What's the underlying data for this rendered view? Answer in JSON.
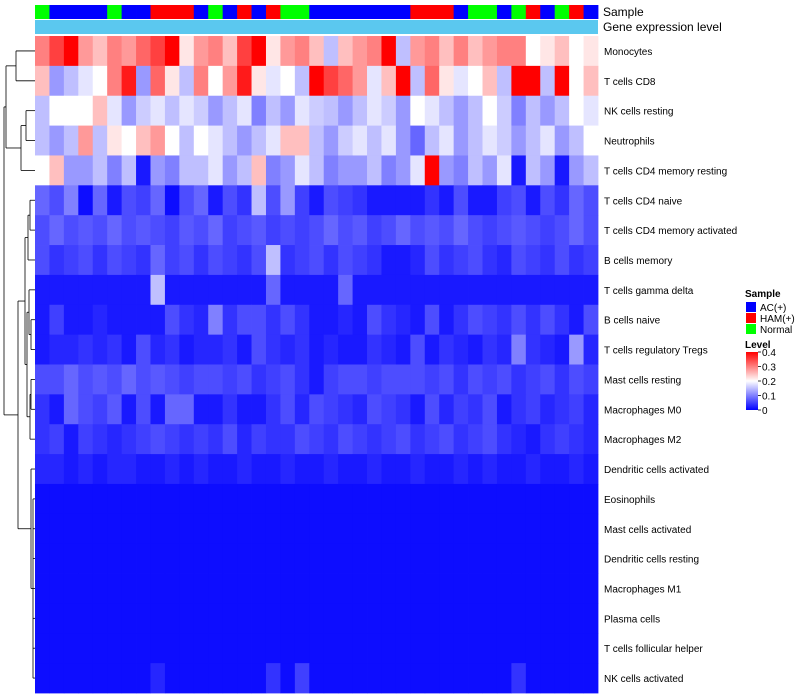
{
  "chart_data": {
    "type": "heatmap",
    "annotation_labels": [
      "Sample",
      "Gene expression level"
    ],
    "sample_groups": [
      "AC(+)",
      "HAM(+)",
      "Normal"
    ],
    "group_colors": {
      "AC(+)": "#0000ff",
      "HAM(+)": "#ff0000",
      "Normal": "#00ff00"
    },
    "samples": [
      "N",
      "A",
      "A",
      "A",
      "A",
      "N",
      "A",
      "A",
      "H",
      "H",
      "H",
      "A",
      "N",
      "A",
      "H",
      "A",
      "H",
      "N",
      "N",
      "A",
      "A",
      "A",
      "A",
      "A",
      "A",
      "A",
      "H",
      "H",
      "H",
      "A",
      "N",
      "N",
      "A",
      "N",
      "H",
      "A",
      "N",
      "H",
      "A"
    ],
    "expression_bar_color": "#5bc8ef",
    "rows": [
      "Monocytes",
      "T cells CD8",
      "NK cells resting",
      "Neutrophils",
      "T cells CD4 memory resting",
      "T cells CD4 naive",
      "T cells CD4 memory activated",
      "B cells memory",
      "T cells gamma delta",
      "B cells naive",
      "T cells regulatory  Tregs",
      "Mast cells resting",
      "Macrophages M0",
      "Macrophages M2",
      "Dendritic cells activated",
      "Eosinophils",
      "Mast cells activated",
      "Dendritic cells resting",
      "Macrophages M1",
      "Plasma cells",
      "T cells follicular helper",
      "NK cells activated"
    ],
    "values": [
      [
        0.3,
        0.35,
        0.4,
        0.28,
        0.25,
        0.3,
        0.28,
        0.32,
        0.35,
        0.4,
        0.22,
        0.28,
        0.3,
        0.25,
        0.35,
        0.4,
        0.22,
        0.28,
        0.3,
        0.25,
        0.15,
        0.25,
        0.28,
        0.3,
        0.4,
        0.15,
        0.28,
        0.3,
        0.25,
        0.3,
        0.25,
        0.28,
        0.3,
        0.3,
        0.2,
        0.22,
        0.25,
        0.2,
        0.22
      ],
      [
        0.25,
        0.12,
        0.15,
        0.18,
        0.2,
        0.3,
        0.38,
        0.12,
        0.32,
        0.22,
        0.15,
        0.3,
        0.2,
        0.28,
        0.38,
        0.22,
        0.18,
        0.2,
        0.15,
        0.4,
        0.35,
        0.32,
        0.28,
        0.18,
        0.25,
        0.4,
        0.15,
        0.32,
        0.22,
        0.18,
        0.2,
        0.25,
        0.15,
        0.4,
        0.4,
        0.15,
        0.4,
        0.2,
        0.25
      ],
      [
        0.15,
        0.2,
        0.2,
        0.2,
        0.25,
        0.18,
        0.12,
        0.16,
        0.18,
        0.15,
        0.18,
        0.16,
        0.12,
        0.15,
        0.18,
        0.1,
        0.15,
        0.12,
        0.18,
        0.16,
        0.15,
        0.12,
        0.15,
        0.18,
        0.16,
        0.12,
        0.2,
        0.18,
        0.15,
        0.12,
        0.15,
        0.2,
        0.16,
        0.1,
        0.15,
        0.12,
        0.15,
        0.2,
        0.18
      ],
      [
        0.15,
        0.12,
        0.15,
        0.28,
        0.15,
        0.22,
        0.2,
        0.25,
        0.28,
        0.2,
        0.15,
        0.2,
        0.18,
        0.15,
        0.12,
        0.15,
        0.18,
        0.25,
        0.25,
        0.15,
        0.12,
        0.16,
        0.18,
        0.15,
        0.18,
        0.12,
        0.08,
        0.15,
        0.18,
        0.12,
        0.15,
        0.18,
        0.16,
        0.12,
        0.15,
        0.18,
        0.12,
        0.15,
        0.2
      ],
      [
        0.2,
        0.25,
        0.12,
        0.12,
        0.15,
        0.1,
        0.15,
        0.02,
        0.12,
        0.1,
        0.15,
        0.15,
        0.18,
        0.12,
        0.15,
        0.25,
        0.1,
        0.12,
        0.18,
        0.15,
        0.1,
        0.12,
        0.12,
        0.15,
        0.1,
        0.12,
        0.18,
        0.4,
        0.12,
        0.1,
        0.15,
        0.12,
        0.18,
        0.02,
        0.15,
        0.12,
        0.02,
        0.12,
        0.15
      ],
      [
        0.08,
        0.06,
        0.1,
        0.01,
        0.08,
        0.02,
        0.06,
        0.05,
        0.08,
        0.01,
        0.06,
        0.08,
        0.02,
        0.06,
        0.04,
        0.15,
        0.06,
        0.12,
        0.05,
        0.02,
        0.06,
        0.05,
        0.04,
        0.02,
        0.02,
        0.02,
        0.02,
        0.04,
        0.02,
        0.06,
        0.02,
        0.02,
        0.05,
        0.06,
        0.02,
        0.06,
        0.04,
        0.08,
        0.06
      ],
      [
        0.06,
        0.08,
        0.06,
        0.07,
        0.06,
        0.08,
        0.06,
        0.07,
        0.06,
        0.05,
        0.07,
        0.06,
        0.08,
        0.05,
        0.06,
        0.07,
        0.05,
        0.06,
        0.05,
        0.06,
        0.08,
        0.06,
        0.07,
        0.05,
        0.06,
        0.08,
        0.06,
        0.07,
        0.06,
        0.08,
        0.06,
        0.05,
        0.06,
        0.07,
        0.06,
        0.05,
        0.06,
        0.08,
        0.06
      ],
      [
        0.06,
        0.04,
        0.05,
        0.06,
        0.04,
        0.06,
        0.05,
        0.04,
        0.08,
        0.05,
        0.06,
        0.04,
        0.06,
        0.05,
        0.04,
        0.06,
        0.15,
        0.04,
        0.05,
        0.06,
        0.04,
        0.06,
        0.05,
        0.04,
        0.02,
        0.02,
        0.03,
        0.06,
        0.04,
        0.05,
        0.06,
        0.04,
        0.03,
        0.06,
        0.05,
        0.04,
        0.06,
        0.04,
        0.05
      ],
      [
        0.02,
        0.02,
        0.02,
        0.02,
        0.02,
        0.02,
        0.02,
        0.02,
        0.15,
        0.02,
        0.02,
        0.02,
        0.02,
        0.02,
        0.02,
        0.02,
        0.08,
        0.02,
        0.02,
        0.02,
        0.02,
        0.08,
        0.02,
        0.02,
        0.02,
        0.02,
        0.02,
        0.02,
        0.02,
        0.02,
        0.02,
        0.02,
        0.02,
        0.02,
        0.02,
        0.02,
        0.02,
        0.02,
        0.02
      ],
      [
        0.02,
        0.05,
        0.02,
        0.02,
        0.03,
        0.02,
        0.02,
        0.02,
        0.02,
        0.06,
        0.04,
        0.03,
        0.1,
        0.04,
        0.06,
        0.06,
        0.04,
        0.06,
        0.04,
        0.02,
        0.02,
        0.03,
        0.02,
        0.06,
        0.04,
        0.03,
        0.02,
        0.06,
        0.02,
        0.04,
        0.06,
        0.05,
        0.04,
        0.06,
        0.04,
        0.06,
        0.04,
        0.02,
        0.06
      ],
      [
        0.02,
        0.03,
        0.03,
        0.04,
        0.03,
        0.04,
        0.02,
        0.06,
        0.03,
        0.04,
        0.02,
        0.03,
        0.03,
        0.04,
        0.02,
        0.06,
        0.04,
        0.03,
        0.04,
        0.02,
        0.03,
        0.02,
        0.02,
        0.04,
        0.03,
        0.02,
        0.06,
        0.02,
        0.04,
        0.03,
        0.02,
        0.04,
        0.03,
        0.1,
        0.04,
        0.03,
        0.02,
        0.12,
        0.03
      ],
      [
        0.06,
        0.06,
        0.08,
        0.06,
        0.07,
        0.06,
        0.08,
        0.06,
        0.07,
        0.06,
        0.05,
        0.06,
        0.06,
        0.05,
        0.06,
        0.04,
        0.05,
        0.06,
        0.04,
        0.02,
        0.05,
        0.06,
        0.06,
        0.05,
        0.06,
        0.06,
        0.06,
        0.05,
        0.06,
        0.04,
        0.06,
        0.05,
        0.06,
        0.04,
        0.05,
        0.06,
        0.04,
        0.06,
        0.05
      ],
      [
        0.04,
        0.02,
        0.08,
        0.06,
        0.05,
        0.07,
        0.02,
        0.06,
        0.02,
        0.08,
        0.08,
        0.02,
        0.02,
        0.04,
        0.02,
        0.02,
        0.04,
        0.06,
        0.03,
        0.06,
        0.05,
        0.04,
        0.03,
        0.06,
        0.05,
        0.04,
        0.02,
        0.06,
        0.03,
        0.05,
        0.04,
        0.06,
        0.02,
        0.04,
        0.05,
        0.03,
        0.04,
        0.05,
        0.03
      ],
      [
        0.04,
        0.05,
        0.02,
        0.05,
        0.04,
        0.03,
        0.04,
        0.05,
        0.06,
        0.05,
        0.04,
        0.05,
        0.04,
        0.06,
        0.03,
        0.05,
        0.04,
        0.04,
        0.06,
        0.05,
        0.04,
        0.06,
        0.05,
        0.04,
        0.05,
        0.06,
        0.04,
        0.05,
        0.06,
        0.04,
        0.05,
        0.06,
        0.04,
        0.03,
        0.02,
        0.04,
        0.05,
        0.04,
        0.03
      ],
      [
        0.03,
        0.03,
        0.02,
        0.03,
        0.02,
        0.03,
        0.03,
        0.02,
        0.02,
        0.03,
        0.02,
        0.03,
        0.02,
        0.02,
        0.03,
        0.02,
        0.02,
        0.03,
        0.02,
        0.02,
        0.03,
        0.02,
        0.02,
        0.03,
        0.02,
        0.02,
        0.03,
        0.02,
        0.02,
        0.03,
        0.02,
        0.03,
        0.02,
        0.02,
        0.03,
        0.02,
        0.02,
        0.03,
        0.02
      ],
      [
        0.01,
        0.01,
        0.01,
        0.01,
        0.01,
        0.01,
        0.01,
        0.01,
        0.01,
        0.01,
        0.01,
        0.01,
        0.01,
        0.01,
        0.01,
        0.01,
        0.01,
        0.01,
        0.01,
        0.01,
        0.01,
        0.01,
        0.01,
        0.01,
        0.01,
        0.01,
        0.01,
        0.01,
        0.01,
        0.01,
        0.01,
        0.01,
        0.01,
        0.01,
        0.01,
        0.01,
        0.01,
        0.01,
        0.01
      ],
      [
        0.01,
        0.01,
        0.01,
        0.01,
        0.01,
        0.01,
        0.01,
        0.01,
        0.01,
        0.01,
        0.01,
        0.01,
        0.01,
        0.01,
        0.01,
        0.01,
        0.01,
        0.01,
        0.01,
        0.01,
        0.01,
        0.01,
        0.01,
        0.01,
        0.01,
        0.01,
        0.01,
        0.01,
        0.01,
        0.01,
        0.01,
        0.01,
        0.01,
        0.01,
        0.01,
        0.01,
        0.01,
        0.01,
        0.01
      ],
      [
        0.01,
        0.01,
        0.01,
        0.01,
        0.01,
        0.01,
        0.01,
        0.01,
        0.01,
        0.01,
        0.01,
        0.01,
        0.01,
        0.01,
        0.01,
        0.01,
        0.01,
        0.01,
        0.01,
        0.01,
        0.01,
        0.01,
        0.01,
        0.01,
        0.01,
        0.01,
        0.01,
        0.01,
        0.01,
        0.01,
        0.01,
        0.01,
        0.01,
        0.01,
        0.01,
        0.01,
        0.01,
        0.01,
        0.01
      ],
      [
        0.01,
        0.01,
        0.01,
        0.01,
        0.01,
        0.01,
        0.01,
        0.01,
        0.01,
        0.01,
        0.01,
        0.01,
        0.01,
        0.01,
        0.01,
        0.01,
        0.01,
        0.01,
        0.01,
        0.01,
        0.01,
        0.01,
        0.01,
        0.01,
        0.01,
        0.01,
        0.01,
        0.01,
        0.01,
        0.01,
        0.01,
        0.01,
        0.01,
        0.01,
        0.01,
        0.01,
        0.01,
        0.01,
        0.01
      ],
      [
        0.01,
        0.01,
        0.01,
        0.01,
        0.01,
        0.01,
        0.01,
        0.01,
        0.01,
        0.01,
        0.01,
        0.01,
        0.01,
        0.01,
        0.01,
        0.01,
        0.01,
        0.01,
        0.01,
        0.01,
        0.01,
        0.01,
        0.01,
        0.01,
        0.01,
        0.01,
        0.01,
        0.01,
        0.01,
        0.01,
        0.01,
        0.01,
        0.01,
        0.01,
        0.01,
        0.01,
        0.01,
        0.01,
        0.01
      ],
      [
        0.01,
        0.01,
        0.01,
        0.01,
        0.01,
        0.01,
        0.01,
        0.01,
        0.01,
        0.01,
        0.01,
        0.01,
        0.01,
        0.01,
        0.01,
        0.01,
        0.01,
        0.01,
        0.01,
        0.01,
        0.01,
        0.01,
        0.01,
        0.01,
        0.01,
        0.01,
        0.01,
        0.01,
        0.01,
        0.01,
        0.01,
        0.01,
        0.01,
        0.01,
        0.01,
        0.01,
        0.01,
        0.01,
        0.01
      ],
      [
        0.01,
        0.01,
        0.01,
        0.01,
        0.01,
        0.01,
        0.01,
        0.01,
        0.03,
        0.01,
        0.01,
        0.01,
        0.01,
        0.01,
        0.01,
        0.01,
        0.04,
        0.01,
        0.05,
        0.01,
        0.01,
        0.01,
        0.01,
        0.01,
        0.01,
        0.01,
        0.01,
        0.01,
        0.01,
        0.01,
        0.01,
        0.01,
        0.01,
        0.04,
        0.01,
        0.01,
        0.01,
        0.01,
        0.01
      ]
    ],
    "legend_sample_title": "Sample",
    "legend_level_title": "Level",
    "level_ticks": [
      "0.4",
      "0.3",
      "0.2",
      "0.1",
      "0"
    ],
    "level_tick_values": [
      0.4,
      0.3,
      0.2,
      0.1,
      0
    ],
    "color_scale": {
      "min": 0,
      "mid": 0.2,
      "max": 0.4,
      "low": "#0000ff",
      "midColor": "#ffffff",
      "high": "#ff0000"
    }
  }
}
